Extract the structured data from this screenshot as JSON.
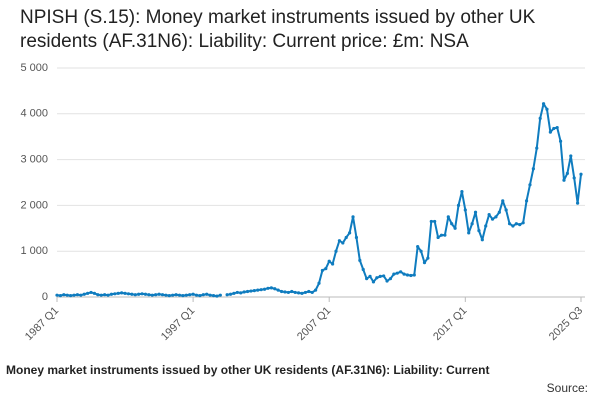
{
  "chart_data": {
    "type": "line",
    "title": "NPISH (S.15): Money market instruments issued by other UK residents (AF.31N6): Liability: Current price: £m: NSA",
    "subtitle": "Money market instruments issued by other UK residents (AF.31N6): Liability: Current",
    "source": "Source:",
    "color": "#0f7cbf",
    "grid": true,
    "ylim": [
      0,
      5000
    ],
    "yticks": [
      0,
      {
        "value": 1000,
        "label": "1 000"
      },
      {
        "value": 2000,
        "label": "2 000"
      },
      {
        "value": 3000,
        "label": "3 000"
      },
      {
        "value": 4000,
        "label": "4 000"
      },
      {
        "value": 5000,
        "label": "5 000"
      }
    ],
    "categories": [
      "1987 Q1",
      null,
      null,
      null,
      null,
      null,
      null,
      null,
      null,
      null,
      null,
      null,
      null,
      null,
      null,
      null,
      null,
      null,
      null,
      null,
      null,
      null,
      null,
      null,
      null,
      null,
      null,
      null,
      null,
      null,
      null,
      null,
      null,
      null,
      null,
      null,
      null,
      null,
      null,
      null,
      "1997 Q1",
      null,
      null,
      null,
      null,
      null,
      null,
      null,
      null,
      null,
      null,
      null,
      null,
      null,
      null,
      null,
      null,
      null,
      null,
      null,
      null,
      null,
      null,
      null,
      null,
      null,
      null,
      null,
      null,
      null,
      null,
      null,
      null,
      null,
      null,
      null,
      null,
      null,
      null,
      null,
      "2007 Q1",
      null,
      null,
      null,
      null,
      null,
      null,
      null,
      null,
      null,
      null,
      null,
      null,
      null,
      null,
      null,
      null,
      null,
      null,
      null,
      null,
      null,
      null,
      null,
      null,
      null,
      null,
      null,
      null,
      null,
      null,
      null,
      null,
      null,
      null,
      null,
      null,
      null,
      null,
      null,
      "2017 Q1",
      null,
      null,
      null,
      null,
      null,
      null,
      null,
      null,
      null,
      null,
      null,
      null,
      null,
      null,
      null,
      null,
      null,
      null,
      null,
      null,
      null,
      null,
      null,
      null,
      null,
      null,
      null,
      null,
      null,
      null,
      null,
      null,
      null,
      "2025 Q3"
    ],
    "values": [
      40,
      30,
      50,
      40,
      30,
      40,
      50,
      40,
      60,
      80,
      100,
      80,
      50,
      40,
      50,
      40,
      60,
      70,
      80,
      90,
      80,
      70,
      60,
      50,
      60,
      70,
      60,
      50,
      40,
      50,
      60,
      50,
      40,
      30,
      40,
      50,
      40,
      30,
      40,
      50,
      60,
      40,
      30,
      50,
      60,
      40,
      30,
      20,
      40,
      null,
      50,
      60,
      80,
      100,
      90,
      110,
      120,
      130,
      140,
      150,
      160,
      170,
      190,
      200,
      180,
      150,
      120,
      110,
      100,
      120,
      100,
      90,
      80,
      100,
      120,
      100,
      150,
      300,
      580,
      620,
      780,
      720,
      1000,
      1230,
      1180,
      1300,
      1400,
      1750,
      1300,
      800,
      600,
      400,
      450,
      330,
      420,
      450,
      460,
      350,
      400,
      500,
      520,
      550,
      500,
      480,
      470,
      480,
      1100,
      1000,
      750,
      850,
      1650,
      1650,
      1300,
      1350,
      1350,
      1750,
      1600,
      1500,
      2000,
      2300,
      1900,
      1400,
      1600,
      1850,
      1450,
      1250,
      1550,
      1800,
      1700,
      1750,
      1850,
      2100,
      1900,
      1600,
      1550,
      1600,
      1580,
      1620,
      2100,
      2450,
      2800,
      3250,
      3900,
      4220,
      4100,
      3600,
      3680,
      3700,
      3400,
      2550,
      2700,
      3080,
      2600,
      2050,
      2680
    ]
  }
}
